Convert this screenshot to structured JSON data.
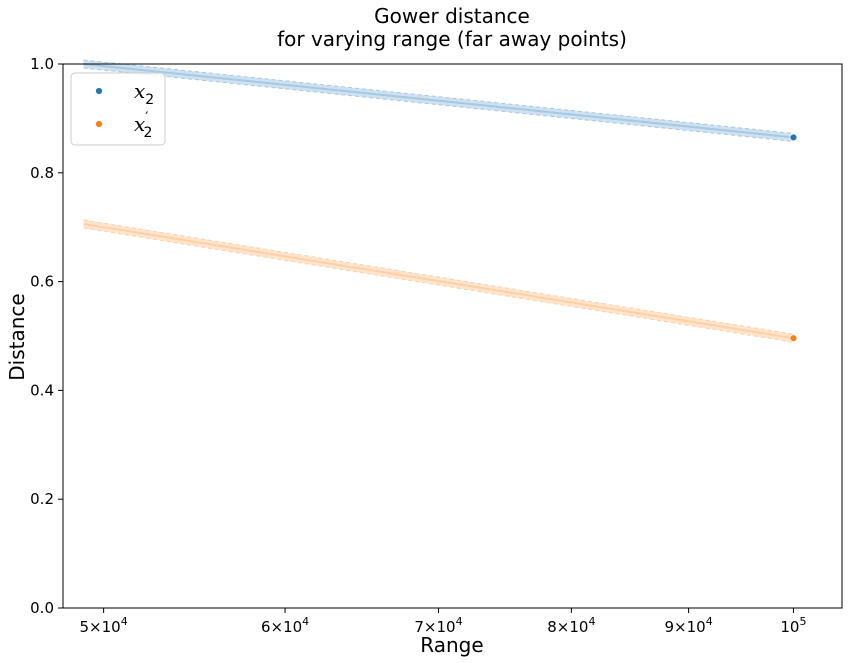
{
  "chart_data": {
    "type": "line",
    "title_lines": [
      "Gower distance",
      "for varying range (far away points)"
    ],
    "xlabel": "Range",
    "ylabel": "Distance",
    "x_scale": "log",
    "xlim": [
      48000,
      105000
    ],
    "ylim": [
      0.0,
      1.0
    ],
    "x_ticks": [
      {
        "value": 50000,
        "mantissa": "5",
        "exp": "4"
      },
      {
        "value": 60000,
        "mantissa": "6",
        "exp": "4"
      },
      {
        "value": 70000,
        "mantissa": "7",
        "exp": "4"
      },
      {
        "value": 80000,
        "mantissa": "8",
        "exp": "4"
      },
      {
        "value": 90000,
        "mantissa": "9",
        "exp": "4"
      },
      {
        "value": 100000,
        "mantissa": "",
        "exp": "5"
      }
    ],
    "y_ticks": [
      "0.0",
      "0.2",
      "0.4",
      "0.6",
      "0.8",
      "1.0"
    ],
    "legend_position": "upper left",
    "series": [
      {
        "name": "x2",
        "legend_base": "x",
        "legend_sub": "2",
        "legend_prime": false,
        "color": "#1f77b4",
        "band_color": "#a6c8e3",
        "x": [
          49000,
          100000
        ],
        "y": [
          1.0,
          0.865
        ],
        "marker": {
          "x": 100000,
          "y": 0.865
        }
      },
      {
        "name": "x2'",
        "legend_base": "x",
        "legend_sub": "2",
        "legend_prime": true,
        "color": "#ff7f0e",
        "band_color": "#ffcfa6",
        "x": [
          49000,
          100000
        ],
        "y": [
          0.706,
          0.496
        ],
        "marker": {
          "x": 100000,
          "y": 0.496
        }
      }
    ]
  }
}
